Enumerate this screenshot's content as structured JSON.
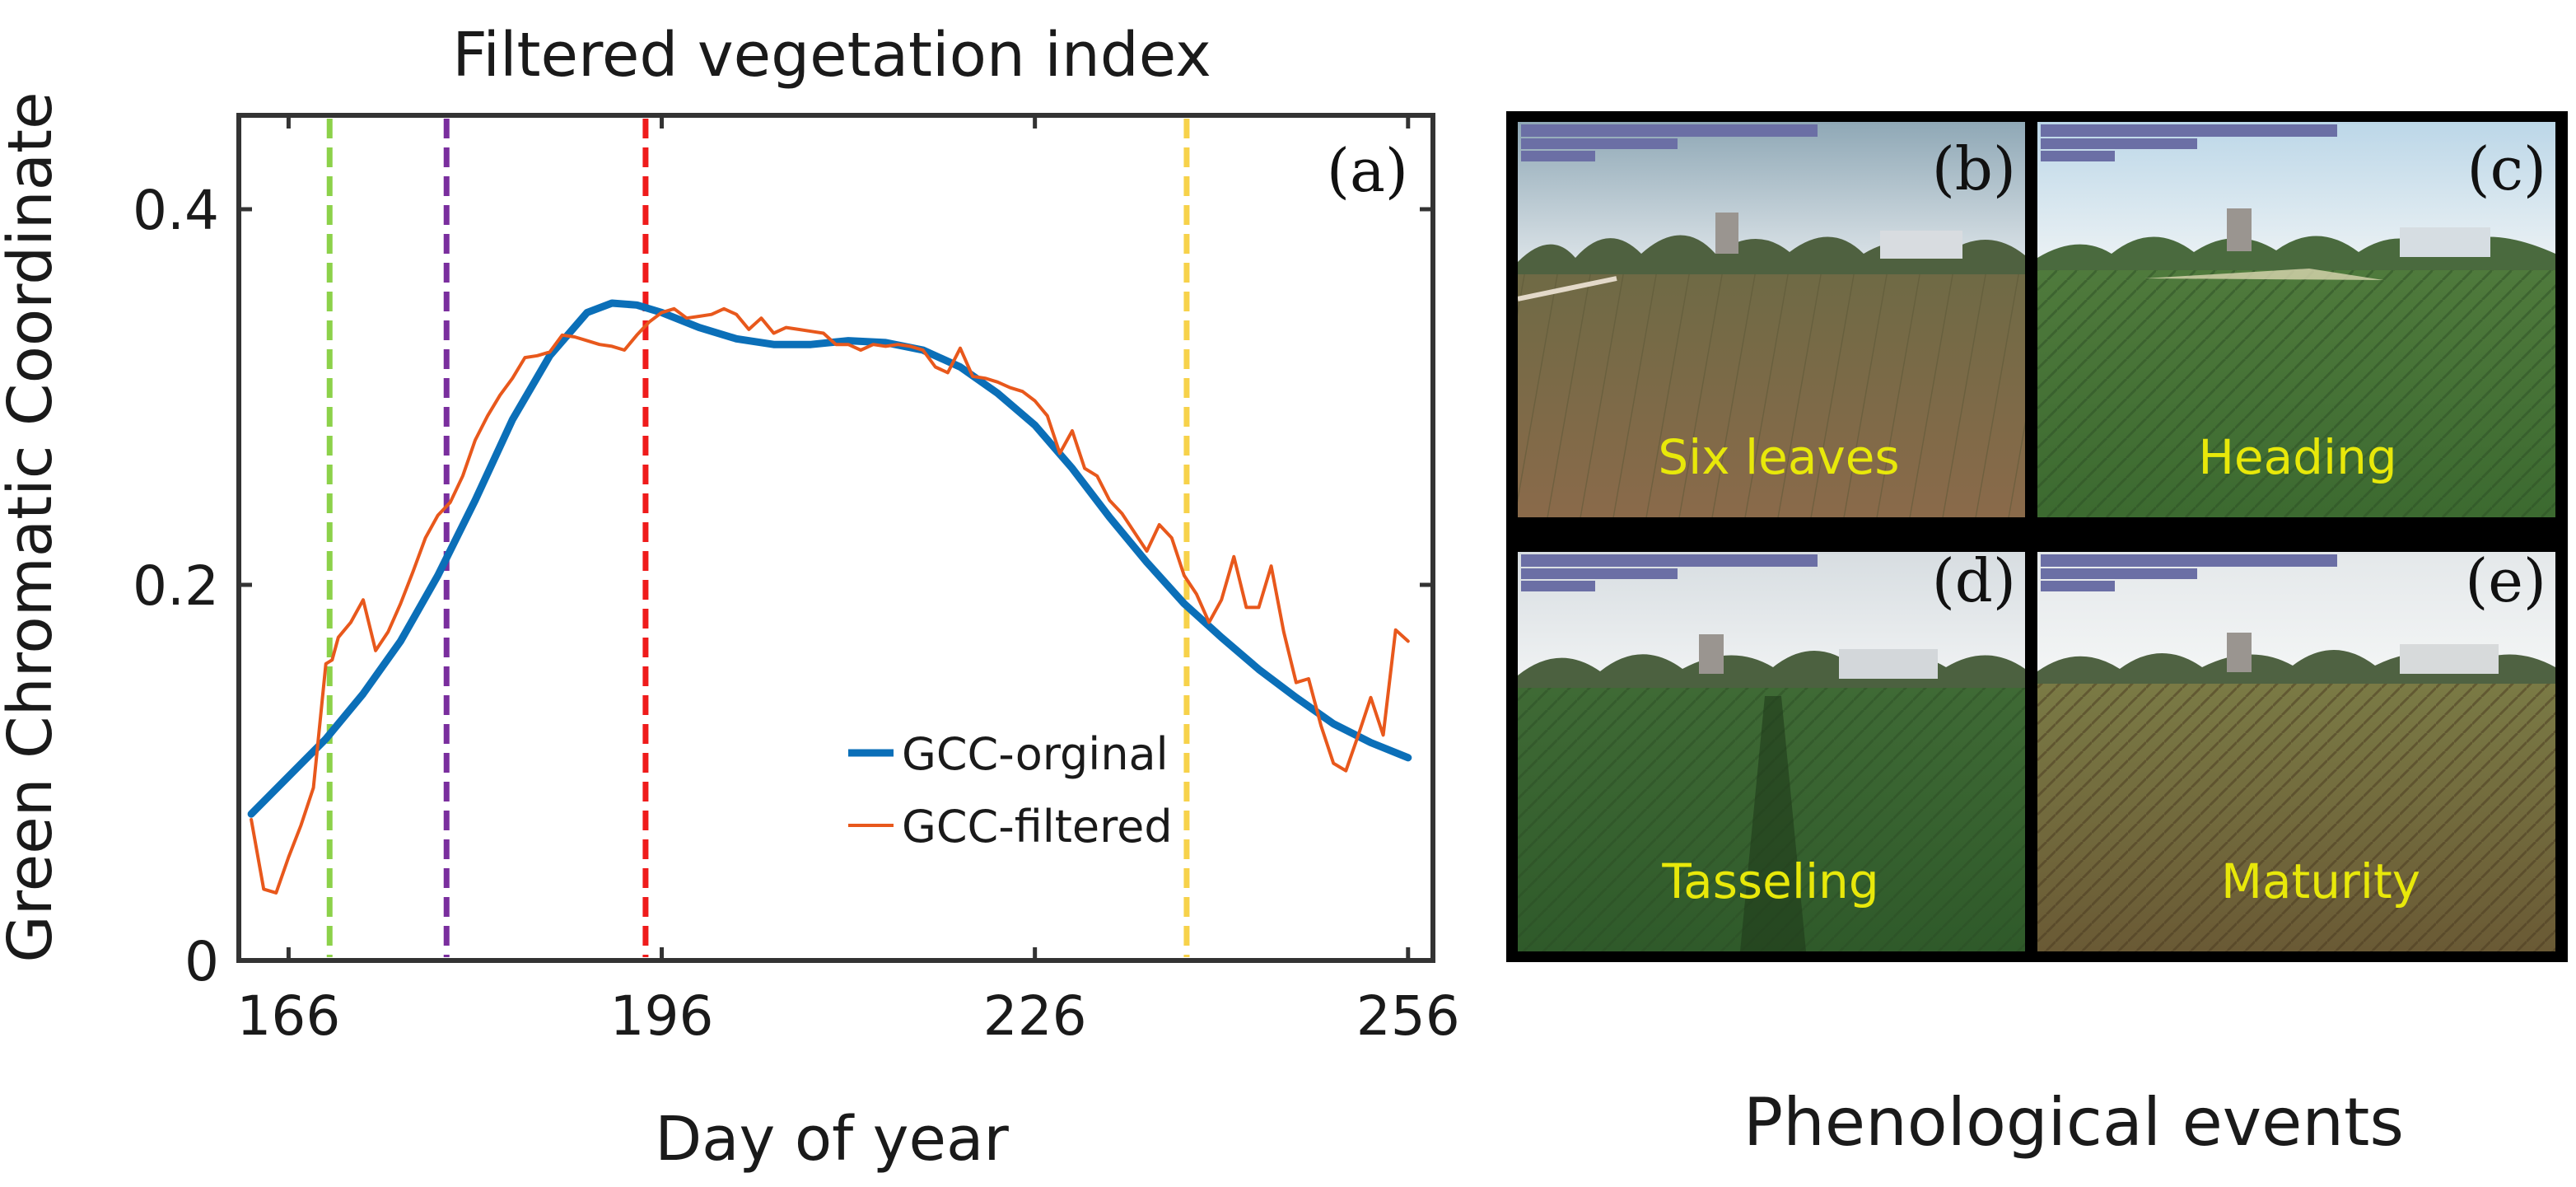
{
  "chart_data": {
    "type": "line",
    "title": "Filtered vegetation index",
    "xlabel": "Day of year",
    "ylabel": "Green Chromatic Coordinate",
    "panel_label": "(a)",
    "xlim": [
      162,
      258
    ],
    "ylim": [
      0,
      0.45
    ],
    "x_ticks": [
      166,
      196,
      226,
      256
    ],
    "y_ticks": [
      0,
      0.2,
      0.4
    ],
    "y_tick_labels": [
      "0",
      "0.2",
      "0.4"
    ],
    "grid": false,
    "legend_position": "lower-right",
    "series": [
      {
        "name": "GCC-orginal",
        "color": "#0b6fb8",
        "x": [
          163,
          166,
          169,
          172,
          175,
          178,
          181,
          184,
          187,
          190,
          192,
          194,
          196,
          199,
          202,
          205,
          208,
          211,
          214,
          217,
          220,
          223,
          226,
          229,
          232,
          235,
          238,
          241,
          244,
          247,
          250,
          253,
          256
        ],
        "y": [
          0.078,
          0.098,
          0.118,
          0.142,
          0.17,
          0.205,
          0.245,
          0.288,
          0.322,
          0.345,
          0.35,
          0.349,
          0.345,
          0.337,
          0.331,
          0.328,
          0.328,
          0.33,
          0.329,
          0.325,
          0.316,
          0.302,
          0.285,
          0.262,
          0.236,
          0.212,
          0.19,
          0.172,
          0.155,
          0.14,
          0.126,
          0.116,
          0.108
        ]
      },
      {
        "name": "GCC-filtered",
        "color": "#e8581c",
        "x": [
          163,
          164,
          165,
          166,
          167,
          168,
          169,
          169.5,
          170,
          171,
          172,
          173,
          174,
          175,
          176,
          177,
          178,
          179,
          180,
          181,
          182,
          183,
          184,
          185,
          186,
          187,
          188,
          189,
          190,
          191,
          192,
          193,
          194,
          195,
          196,
          197,
          198,
          199,
          200,
          201,
          202,
          203,
          204,
          205,
          206,
          207,
          208,
          209,
          210,
          211,
          212,
          213,
          214,
          215,
          216,
          217,
          218,
          219,
          220,
          221,
          222,
          223,
          224,
          225,
          226,
          227,
          228,
          229,
          230,
          231,
          232,
          233,
          234,
          235,
          236,
          237,
          238,
          239,
          240,
          241,
          242,
          243,
          244,
          245,
          246,
          247,
          248,
          249,
          250,
          251,
          252,
          253,
          254,
          255,
          256
        ],
        "y": [
          0.075,
          0.038,
          0.036,
          0.055,
          0.072,
          0.092,
          0.158,
          0.16,
          0.172,
          0.18,
          0.192,
          0.165,
          0.175,
          0.19,
          0.207,
          0.225,
          0.237,
          0.244,
          0.258,
          0.277,
          0.29,
          0.301,
          0.31,
          0.321,
          0.322,
          0.324,
          0.333,
          0.332,
          0.33,
          0.328,
          0.327,
          0.325,
          0.333,
          0.34,
          0.345,
          0.347,
          0.342,
          0.343,
          0.344,
          0.347,
          0.344,
          0.336,
          0.342,
          0.334,
          0.337,
          0.336,
          0.335,
          0.334,
          0.328,
          0.328,
          0.325,
          0.328,
          0.327,
          0.328,
          0.327,
          0.325,
          0.316,
          0.313,
          0.326,
          0.311,
          0.31,
          0.308,
          0.305,
          0.303,
          0.298,
          0.29,
          0.27,
          0.282,
          0.262,
          0.258,
          0.245,
          0.238,
          0.228,
          0.218,
          0.232,
          0.225,
          0.205,
          0.195,
          0.18,
          0.192,
          0.215,
          0.188,
          0.188,
          0.21,
          0.175,
          0.148,
          0.15,
          0.125,
          0.105,
          0.101,
          0.12,
          0.14,
          0.12,
          0.176,
          0.17
        ]
      }
    ],
    "event_lines": [
      {
        "day": 169.3,
        "color": "#8cd14a"
      },
      {
        "day": 178.7,
        "color": "#7a2e9e"
      },
      {
        "day": 194.7,
        "color": "#ef1b1b"
      },
      {
        "day": 238.2,
        "color": "#f7d24a"
      }
    ]
  },
  "photos_panel": {
    "caption": "Phenological events",
    "photos": [
      {
        "panel": "(b)",
        "stage": "Six leaves"
      },
      {
        "panel": "(c)",
        "stage": "Heading"
      },
      {
        "panel": "(d)",
        "stage": "Tasseling"
      },
      {
        "panel": "(e)",
        "stage": "Maturity"
      }
    ]
  }
}
